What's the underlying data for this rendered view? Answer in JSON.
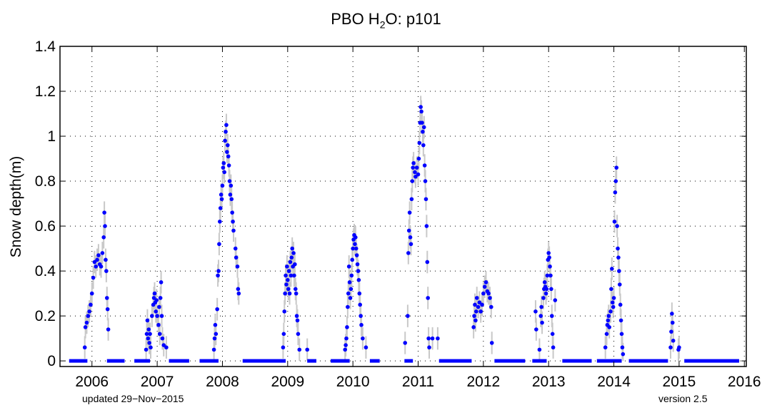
{
  "chart_data": {
    "type": "scatter",
    "title": {
      "pre": "PBO H",
      "sub": "2",
      "post": "O: p101"
    },
    "xlabel": "",
    "ylabel": "Snow depth(m)",
    "xlim": [
      2005.51,
      2016.03
    ],
    "ylim": [
      -0.025,
      1.4
    ],
    "xticks": [
      2006,
      2007,
      2008,
      2009,
      2010,
      2011,
      2012,
      2013,
      2014,
      2015,
      2016
    ],
    "yticks": [
      0,
      0.2,
      0.4,
      0.6,
      0.8,
      1,
      1.2,
      1.4
    ],
    "ytick_labels": [
      "0",
      "0.2",
      "0.4",
      "0.6",
      "0.8",
      "1",
      "1.2",
      "1.4"
    ],
    "grid": true,
    "series_color": "#0000ff",
    "uncertainty_color": "#c8c8c8",
    "uncertainty_m": 0.05,
    "zero_ranges": [
      [
        2005.65,
        2005.93
      ],
      [
        2006.23,
        2006.5
      ],
      [
        2006.65,
        2006.89
      ],
      [
        2007.18,
        2007.49
      ],
      [
        2007.65,
        2007.94
      ],
      [
        2008.31,
        2008.97
      ],
      [
        2009.3,
        2009.44
      ],
      [
        2009.66,
        2009.95
      ],
      [
        2010.26,
        2010.41
      ],
      [
        2010.79,
        2010.92
      ],
      [
        2011.32,
        2011.82
      ],
      [
        2012.17,
        2012.64
      ],
      [
        2012.75,
        2012.97
      ],
      [
        2013.21,
        2013.66
      ],
      [
        2013.74,
        2014.12
      ],
      [
        2014.23,
        2014.83
      ],
      [
        2015.08,
        2015.92
      ]
    ],
    "points": [
      [
        2005.89,
        0.06
      ],
      [
        2005.9,
        0.15
      ],
      [
        2005.92,
        0.17
      ],
      [
        2005.94,
        0.2
      ],
      [
        2005.96,
        0.22
      ],
      [
        2005.98,
        0.25
      ],
      [
        2006.0,
        0.3
      ],
      [
        2006.02,
        0.37
      ],
      [
        2006.04,
        0.44
      ],
      [
        2006.06,
        0.42
      ],
      [
        2006.08,
        0.45
      ],
      [
        2006.1,
        0.47
      ],
      [
        2006.12,
        0.43
      ],
      [
        2006.14,
        0.42
      ],
      [
        2006.16,
        0.48
      ],
      [
        2006.18,
        0.55
      ],
      [
        2006.19,
        0.66
      ],
      [
        2006.2,
        0.6
      ],
      [
        2006.21,
        0.45
      ],
      [
        2006.22,
        0.4
      ],
      [
        2006.23,
        0.28
      ],
      [
        2006.24,
        0.23
      ],
      [
        2006.25,
        0.14
      ],
      [
        2006.83,
        0.05
      ],
      [
        2006.84,
        0.12
      ],
      [
        2006.85,
        0.18
      ],
      [
        2006.86,
        0.1
      ],
      [
        2006.87,
        0.14
      ],
      [
        2006.88,
        0.08
      ],
      [
        2006.89,
        0.12
      ],
      [
        2006.9,
        0.06
      ],
      [
        2006.92,
        0.2
      ],
      [
        2006.94,
        0.25
      ],
      [
        2006.95,
        0.28
      ],
      [
        2006.96,
        0.3
      ],
      [
        2006.97,
        0.26
      ],
      [
        2006.98,
        0.22
      ],
      [
        2006.99,
        0.27
      ],
      [
        2007.0,
        0.2
      ],
      [
        2007.02,
        0.16
      ],
      [
        2007.03,
        0.24
      ],
      [
        2007.04,
        0.12
      ],
      [
        2007.05,
        0.28
      ],
      [
        2007.06,
        0.35
      ],
      [
        2007.07,
        0.2
      ],
      [
        2007.08,
        0.1
      ],
      [
        2007.1,
        0.07
      ],
      [
        2007.14,
        0.06
      ],
      [
        2007.87,
        0.05
      ],
      [
        2007.88,
        0.1
      ],
      [
        2007.89,
        0.16
      ],
      [
        2007.9,
        0.12
      ],
      [
        2007.92,
        0.23
      ],
      [
        2007.93,
        0.38
      ],
      [
        2007.94,
        0.4
      ],
      [
        2007.95,
        0.52
      ],
      [
        2007.96,
        0.62
      ],
      [
        2007.97,
        0.68
      ],
      [
        2007.98,
        0.74
      ],
      [
        2007.99,
        0.72
      ],
      [
        2008.0,
        0.78
      ],
      [
        2008.01,
        0.86
      ],
      [
        2008.02,
        0.88
      ],
      [
        2008.03,
        0.84
      ],
      [
        2008.04,
        0.98
      ],
      [
        2008.05,
        1.02
      ],
      [
        2008.06,
        1.05
      ],
      [
        2008.07,
        0.93
      ],
      [
        2008.08,
        0.96
      ],
      [
        2008.09,
        0.91
      ],
      [
        2008.1,
        0.87
      ],
      [
        2008.11,
        0.8
      ],
      [
        2008.12,
        0.74
      ],
      [
        2008.13,
        0.78
      ],
      [
        2008.14,
        0.72
      ],
      [
        2008.15,
        0.66
      ],
      [
        2008.16,
        0.62
      ],
      [
        2008.17,
        0.58
      ],
      [
        2008.2,
        0.5
      ],
      [
        2008.21,
        0.46
      ],
      [
        2008.23,
        0.42
      ],
      [
        2008.24,
        0.32
      ],
      [
        2008.25,
        0.3
      ],
      [
        2008.93,
        0.06
      ],
      [
        2008.94,
        0.12
      ],
      [
        2008.95,
        0.22
      ],
      [
        2008.96,
        0.3
      ],
      [
        2008.97,
        0.38
      ],
      [
        2008.98,
        0.34
      ],
      [
        2008.99,
        0.42
      ],
      [
        2009.0,
        0.36
      ],
      [
        2009.01,
        0.32
      ],
      [
        2009.02,
        0.4
      ],
      [
        2009.03,
        0.3
      ],
      [
        2009.04,
        0.44
      ],
      [
        2009.05,
        0.38
      ],
      [
        2009.06,
        0.46
      ],
      [
        2009.07,
        0.5
      ],
      [
        2009.08,
        0.42
      ],
      [
        2009.09,
        0.48
      ],
      [
        2009.1,
        0.38
      ],
      [
        2009.11,
        0.43
      ],
      [
        2009.12,
        0.32
      ],
      [
        2009.13,
        0.3
      ],
      [
        2009.14,
        0.2
      ],
      [
        2009.15,
        0.18
      ],
      [
        2009.16,
        0.12
      ],
      [
        2009.18,
        0.05
      ],
      [
        2009.3,
        0.05
      ],
      [
        2009.88,
        0.05
      ],
      [
        2009.89,
        0.07
      ],
      [
        2009.9,
        0.1
      ],
      [
        2009.91,
        0.15
      ],
      [
        2009.92,
        0.24
      ],
      [
        2009.93,
        0.3
      ],
      [
        2009.94,
        0.42
      ],
      [
        2009.95,
        0.35
      ],
      [
        2009.96,
        0.28
      ],
      [
        2009.97,
        0.32
      ],
      [
        2009.98,
        0.38
      ],
      [
        2009.99,
        0.45
      ],
      [
        2010.0,
        0.5
      ],
      [
        2010.01,
        0.54
      ],
      [
        2010.02,
        0.56
      ],
      [
        2010.03,
        0.52
      ],
      [
        2010.04,
        0.55
      ],
      [
        2010.05,
        0.5
      ],
      [
        2010.06,
        0.47
      ],
      [
        2010.07,
        0.43
      ],
      [
        2010.08,
        0.4
      ],
      [
        2010.09,
        0.36
      ],
      [
        2010.1,
        0.3
      ],
      [
        2010.11,
        0.25
      ],
      [
        2010.12,
        0.2
      ],
      [
        2010.13,
        0.16
      ],
      [
        2010.15,
        0.1
      ],
      [
        2010.2,
        0.06
      ],
      [
        2010.8,
        0.08
      ],
      [
        2010.84,
        0.2
      ],
      [
        2010.85,
        0.48
      ],
      [
        2010.86,
        0.58
      ],
      [
        2010.87,
        0.66
      ],
      [
        2010.88,
        0.55
      ],
      [
        2010.89,
        0.52
      ],
      [
        2010.9,
        0.72
      ],
      [
        2010.91,
        0.8
      ],
      [
        2010.92,
        0.86
      ],
      [
        2010.93,
        0.88
      ],
      [
        2010.95,
        0.84
      ],
      [
        2010.96,
        0.82
      ],
      [
        2010.98,
        0.86
      ],
      [
        2011.0,
        0.83
      ],
      [
        2011.01,
        0.9
      ],
      [
        2011.02,
        0.97
      ],
      [
        2011.03,
        1.06
      ],
      [
        2011.04,
        1.13
      ],
      [
        2011.05,
        1.11
      ],
      [
        2011.06,
        1.06
      ],
      [
        2011.07,
        1.02
      ],
      [
        2011.08,
        0.96
      ],
      [
        2011.09,
        1.04
      ],
      [
        2011.1,
        0.87
      ],
      [
        2011.11,
        0.8
      ],
      [
        2011.12,
        0.72
      ],
      [
        2011.13,
        0.6
      ],
      [
        2011.14,
        0.44
      ],
      [
        2011.15,
        0.28
      ],
      [
        2011.16,
        0.1
      ],
      [
        2011.17,
        0.06
      ],
      [
        2011.22,
        0.1
      ],
      [
        2011.3,
        0.1
      ],
      [
        2011.85,
        0.15
      ],
      [
        2011.86,
        0.2
      ],
      [
        2011.87,
        0.25
      ],
      [
        2011.88,
        0.18
      ],
      [
        2011.89,
        0.22
      ],
      [
        2011.9,
        0.28
      ],
      [
        2011.92,
        0.24
      ],
      [
        2011.94,
        0.26
      ],
      [
        2011.96,
        0.22
      ],
      [
        2011.98,
        0.25
      ],
      [
        2012.0,
        0.3
      ],
      [
        2012.02,
        0.33
      ],
      [
        2012.04,
        0.35
      ],
      [
        2012.06,
        0.31
      ],
      [
        2012.08,
        0.3
      ],
      [
        2012.1,
        0.28
      ],
      [
        2012.12,
        0.24
      ],
      [
        2012.13,
        0.08
      ],
      [
        2012.8,
        0.22
      ],
      [
        2012.81,
        0.14
      ],
      [
        2012.86,
        0.05
      ],
      [
        2012.88,
        0.2
      ],
      [
        2012.89,
        0.24
      ],
      [
        2012.9,
        0.17
      ],
      [
        2012.92,
        0.28
      ],
      [
        2012.93,
        0.32
      ],
      [
        2012.94,
        0.35
      ],
      [
        2012.95,
        0.33
      ],
      [
        2012.96,
        0.3
      ],
      [
        2012.97,
        0.32
      ],
      [
        2012.98,
        0.38
      ],
      [
        2012.99,
        0.45
      ],
      [
        2013.0,
        0.48
      ],
      [
        2013.01,
        0.46
      ],
      [
        2013.02,
        0.42
      ],
      [
        2013.03,
        0.38
      ],
      [
        2013.04,
        0.32
      ],
      [
        2013.05,
        0.2
      ],
      [
        2013.06,
        0.12
      ],
      [
        2013.07,
        0.06
      ],
      [
        2013.1,
        0.27
      ],
      [
        2013.87,
        0.06
      ],
      [
        2013.89,
        0.12
      ],
      [
        2013.9,
        0.16
      ],
      [
        2013.91,
        0.18
      ],
      [
        2013.92,
        0.2
      ],
      [
        2013.93,
        0.15
      ],
      [
        2013.95,
        0.22
      ],
      [
        2013.96,
        0.32
      ],
      [
        2013.97,
        0.41
      ],
      [
        2013.98,
        0.26
      ],
      [
        2013.99,
        0.24
      ],
      [
        2014.0,
        0.28
      ],
      [
        2014.01,
        0.62
      ],
      [
        2014.02,
        0.75
      ],
      [
        2014.03,
        0.8
      ],
      [
        2014.04,
        0.86
      ],
      [
        2014.05,
        0.6
      ],
      [
        2014.06,
        0.5
      ],
      [
        2014.07,
        0.46
      ],
      [
        2014.08,
        0.4
      ],
      [
        2014.09,
        0.34
      ],
      [
        2014.1,
        0.25
      ],
      [
        2014.11,
        0.18
      ],
      [
        2014.12,
        0.12
      ],
      [
        2014.13,
        0.06
      ],
      [
        2014.14,
        0.03
      ],
      [
        2014.87,
        0.06
      ],
      [
        2014.88,
        0.13
      ],
      [
        2014.89,
        0.21
      ],
      [
        2014.9,
        0.17
      ],
      [
        2014.91,
        0.09
      ],
      [
        2014.99,
        0.05
      ],
      [
        2015.0,
        0.06
      ]
    ]
  },
  "footer": {
    "updated": "updated 29−Nov−2015",
    "version": "version 2.5"
  }
}
